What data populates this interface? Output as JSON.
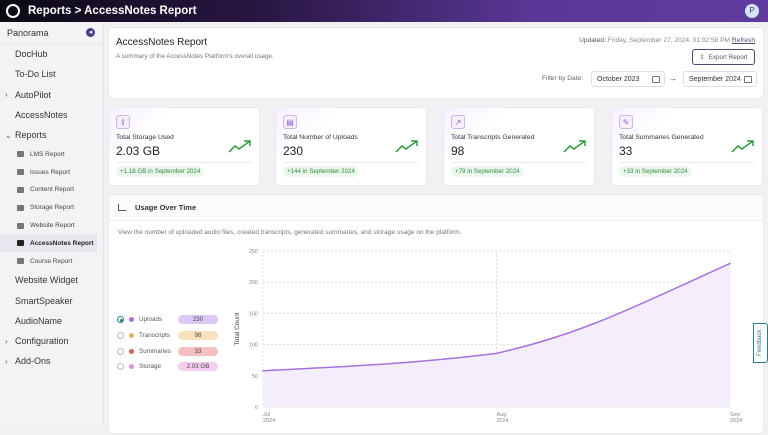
{
  "topbar": {
    "breadcrumb": "Reports > AccessNotes Report",
    "avatar_initial": "P"
  },
  "sidebar": {
    "title": "Panorama",
    "items": [
      {
        "label": "DocHub",
        "chevron": ""
      },
      {
        "label": "To-Do List",
        "chevron": ""
      },
      {
        "label": "AutoPilot",
        "chevron": ">"
      },
      {
        "label": "AccessNotes",
        "chevron": ""
      },
      {
        "label": "Reports",
        "chevron": "v"
      }
    ],
    "sub_items": [
      {
        "label": "LMS Report"
      },
      {
        "label": "Issues Report"
      },
      {
        "label": "Content Report"
      },
      {
        "label": "Storage Report"
      },
      {
        "label": "Website Report"
      },
      {
        "label": "AccessNotes Report",
        "active": true
      },
      {
        "label": "Course Report"
      }
    ],
    "bottom_items": [
      {
        "label": "Website Widget",
        "chevron": ""
      },
      {
        "label": "SmartSpeaker",
        "chevron": ""
      },
      {
        "label": "AudioName",
        "chevron": ""
      },
      {
        "label": "Configuration",
        "chevron": ">"
      },
      {
        "label": "Add-Ons",
        "chevron": ">"
      }
    ]
  },
  "header": {
    "title": "AccessNotes Report",
    "subtitle": "A summary of the AccessNotes Platform's overall usage.",
    "updated_label": "Updated:",
    "updated_value": "Friday, September 27, 2024, 01:02:58 PM",
    "refresh": "Refresh",
    "export": "Export Report",
    "filter_label": "Filter by Date:",
    "date_from": "October 2023",
    "date_to": "September 2024"
  },
  "stats": [
    {
      "label": "Total Storage Used",
      "value": "2.03 GB",
      "change": "+1.18 GB in September 2024",
      "icon": "storage-icon"
    },
    {
      "label": "Total Number of Uploads",
      "value": "230",
      "change": "+144 in September 2024",
      "icon": "upload-icon"
    },
    {
      "label": "Total Transcripts Generated",
      "value": "98",
      "change": "+79 in September 2024",
      "icon": "transcript-icon"
    },
    {
      "label": "Total Summaries Generated",
      "value": "33",
      "change": "+33 in September 2024",
      "icon": "summary-icon"
    }
  ],
  "usage": {
    "title": "Usage Over Time",
    "description": "View the number of uploaded audio files, created transcripts, generated summaries, and storage usage on the platform.",
    "legend": [
      {
        "name": "Uploads",
        "value": "230",
        "color": "#a673dd",
        "pill": "#dcc8f5",
        "selected": true
      },
      {
        "name": "Transcripts",
        "value": "98",
        "color": "#e0b35a",
        "pill": "#f7e2bd",
        "selected": false
      },
      {
        "name": "Summaries",
        "value": "33",
        "color": "#e05a5a",
        "pill": "#f2c0c0",
        "selected": false
      },
      {
        "name": "Storage",
        "value": "2.03 GB",
        "color": "#e28ee0",
        "pill": "#f4cdf0",
        "selected": false
      }
    ]
  },
  "chart_data": {
    "type": "area",
    "series": [
      {
        "name": "Uploads",
        "values": [
          58,
          86,
          230
        ]
      }
    ],
    "x": [
      "Jul 2024",
      "Aug 2024",
      "Sep 2024"
    ],
    "x_ticks": [
      [
        "Jul",
        "2024"
      ],
      [
        "Aug",
        "2024"
      ],
      [
        "Sep",
        "2024"
      ]
    ],
    "ylabel": "Total Count",
    "ylim": [
      0,
      250
    ],
    "y_ticks": [
      "0",
      "50",
      "100",
      "150",
      "200",
      "250"
    ],
    "grid": true,
    "line_color": "#a673dd"
  },
  "feedback": "Feedback"
}
